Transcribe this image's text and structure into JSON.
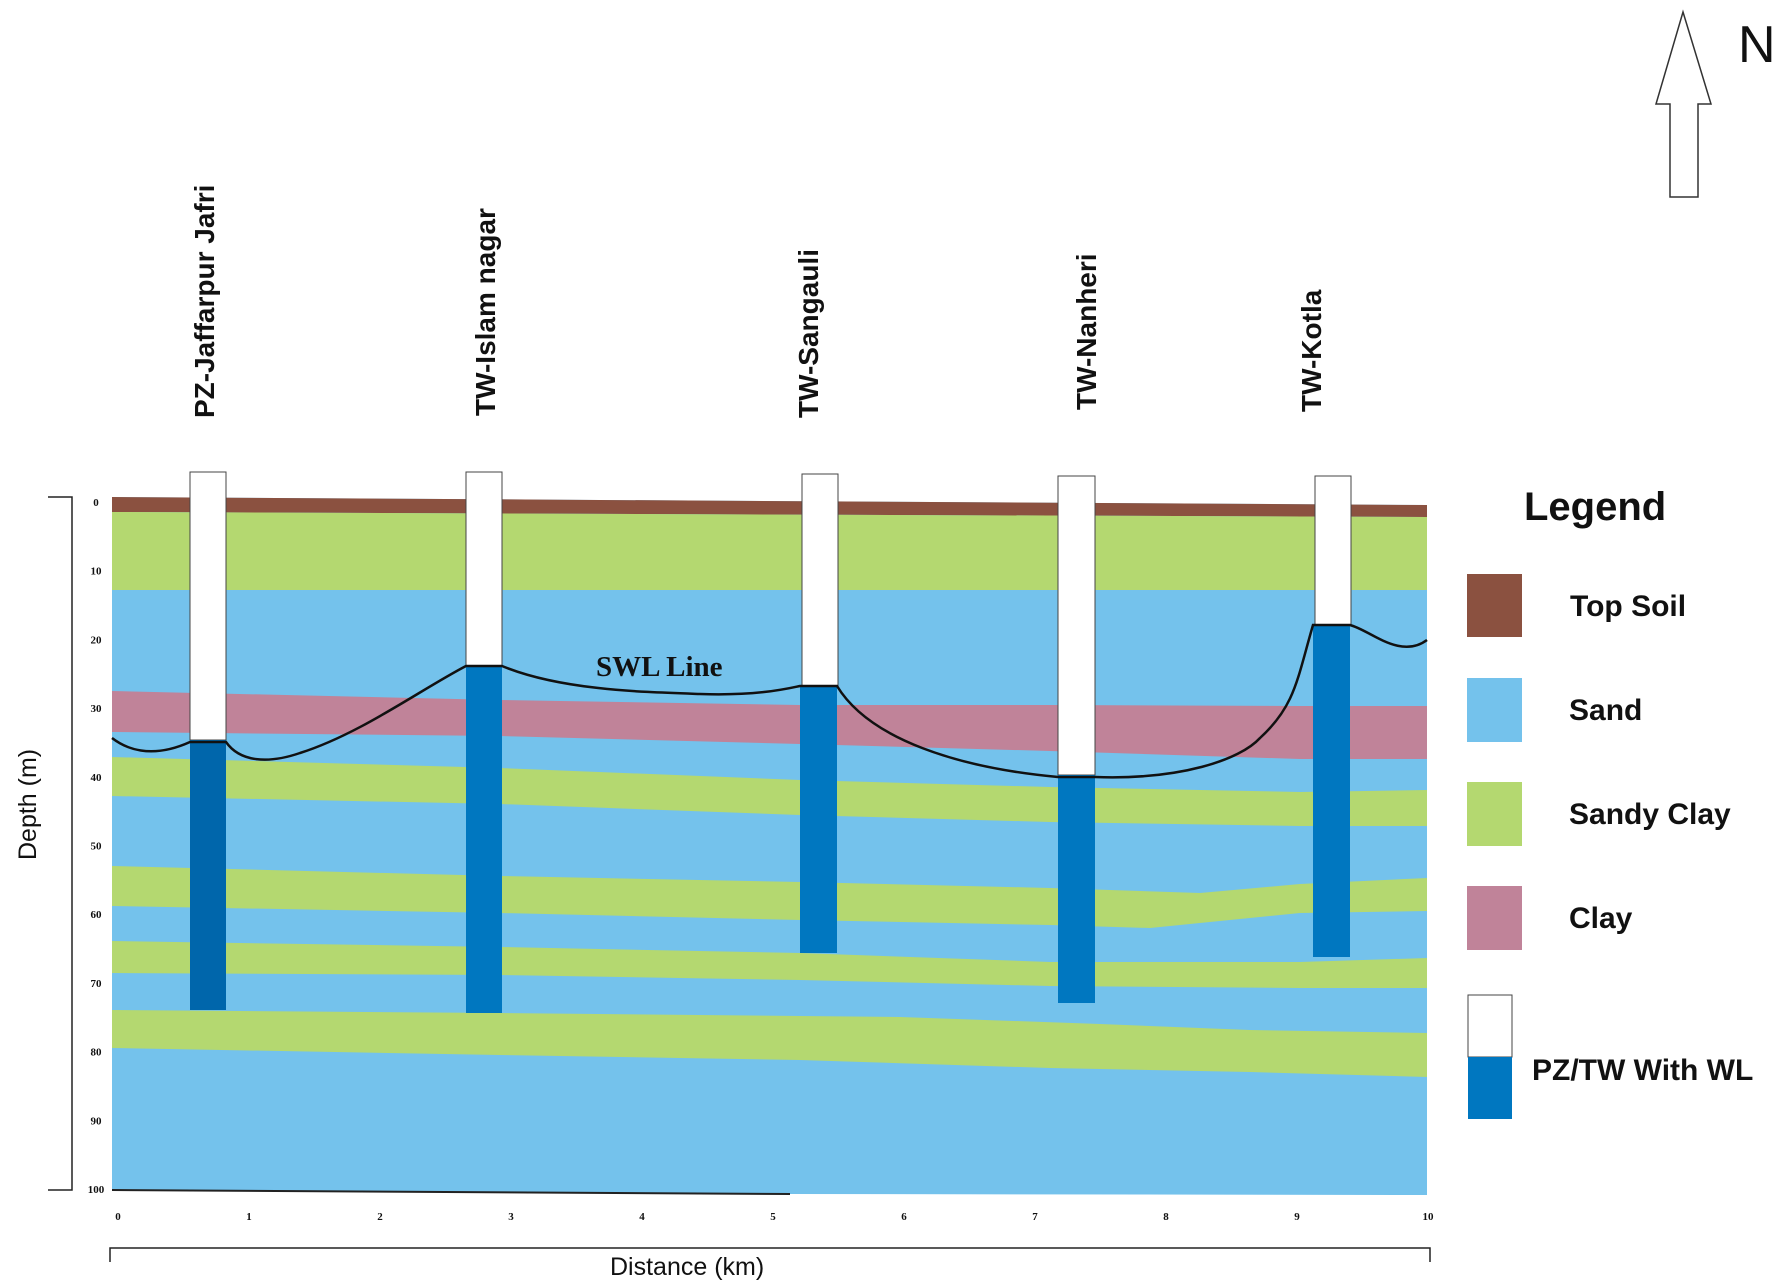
{
  "north": {
    "label": "N",
    "icon": "north-arrow-icon"
  },
  "wells": [
    {
      "id": "PZ-Jaffarpur Jafri",
      "x_km": 0.68,
      "swl_m": 36,
      "bottom_m": 74
    },
    {
      "id": "TW-Islam nagar",
      "x_km": 2.8,
      "swl_m": 24.5,
      "bottom_m": 74
    },
    {
      "id": "TW-Sangauli",
      "x_km": 5.35,
      "swl_m": 27,
      "bottom_m": 66
    },
    {
      "id": "TW-Nanheri",
      "x_km": 7.3,
      "swl_m": 40,
      "bottom_m": 73
    },
    {
      "id": "TW-Kotla",
      "x_km": 9.1,
      "swl_m": 18.5,
      "bottom_m": 67
    }
  ],
  "depth_axis": {
    "title": "Depth (m)",
    "ticks": [
      "0",
      "10",
      "20",
      "30",
      "40",
      "50",
      "60",
      "70",
      "80",
      "90",
      "100"
    ]
  },
  "distance_axis": {
    "title": "Distance (km)",
    "ticks": [
      "0",
      "1",
      "2",
      "3",
      "4",
      "5",
      "6",
      "7",
      "8",
      "9",
      "10"
    ]
  },
  "swl_label": "SWL Line",
  "legend": {
    "title": "Legend",
    "items": [
      {
        "label": "Top Soil",
        "color": "#8b5140"
      },
      {
        "label": "Sand",
        "color": "#74c2ec"
      },
      {
        "label": "Sandy Clay",
        "color": "#b4d870"
      },
      {
        "label": "Clay",
        "color": "#c08399"
      }
    ],
    "well_item": {
      "label": "PZ/TW With WL",
      "color_top": "#ffffff",
      "color_bottom": "#0077c0"
    }
  },
  "colors": {
    "top_soil": "#8b5140",
    "sand": "#74c2ec",
    "sandy_clay": "#b4d870",
    "clay": "#c08399",
    "well_water": "#0077c0",
    "well_dry": "#ffffff"
  }
}
